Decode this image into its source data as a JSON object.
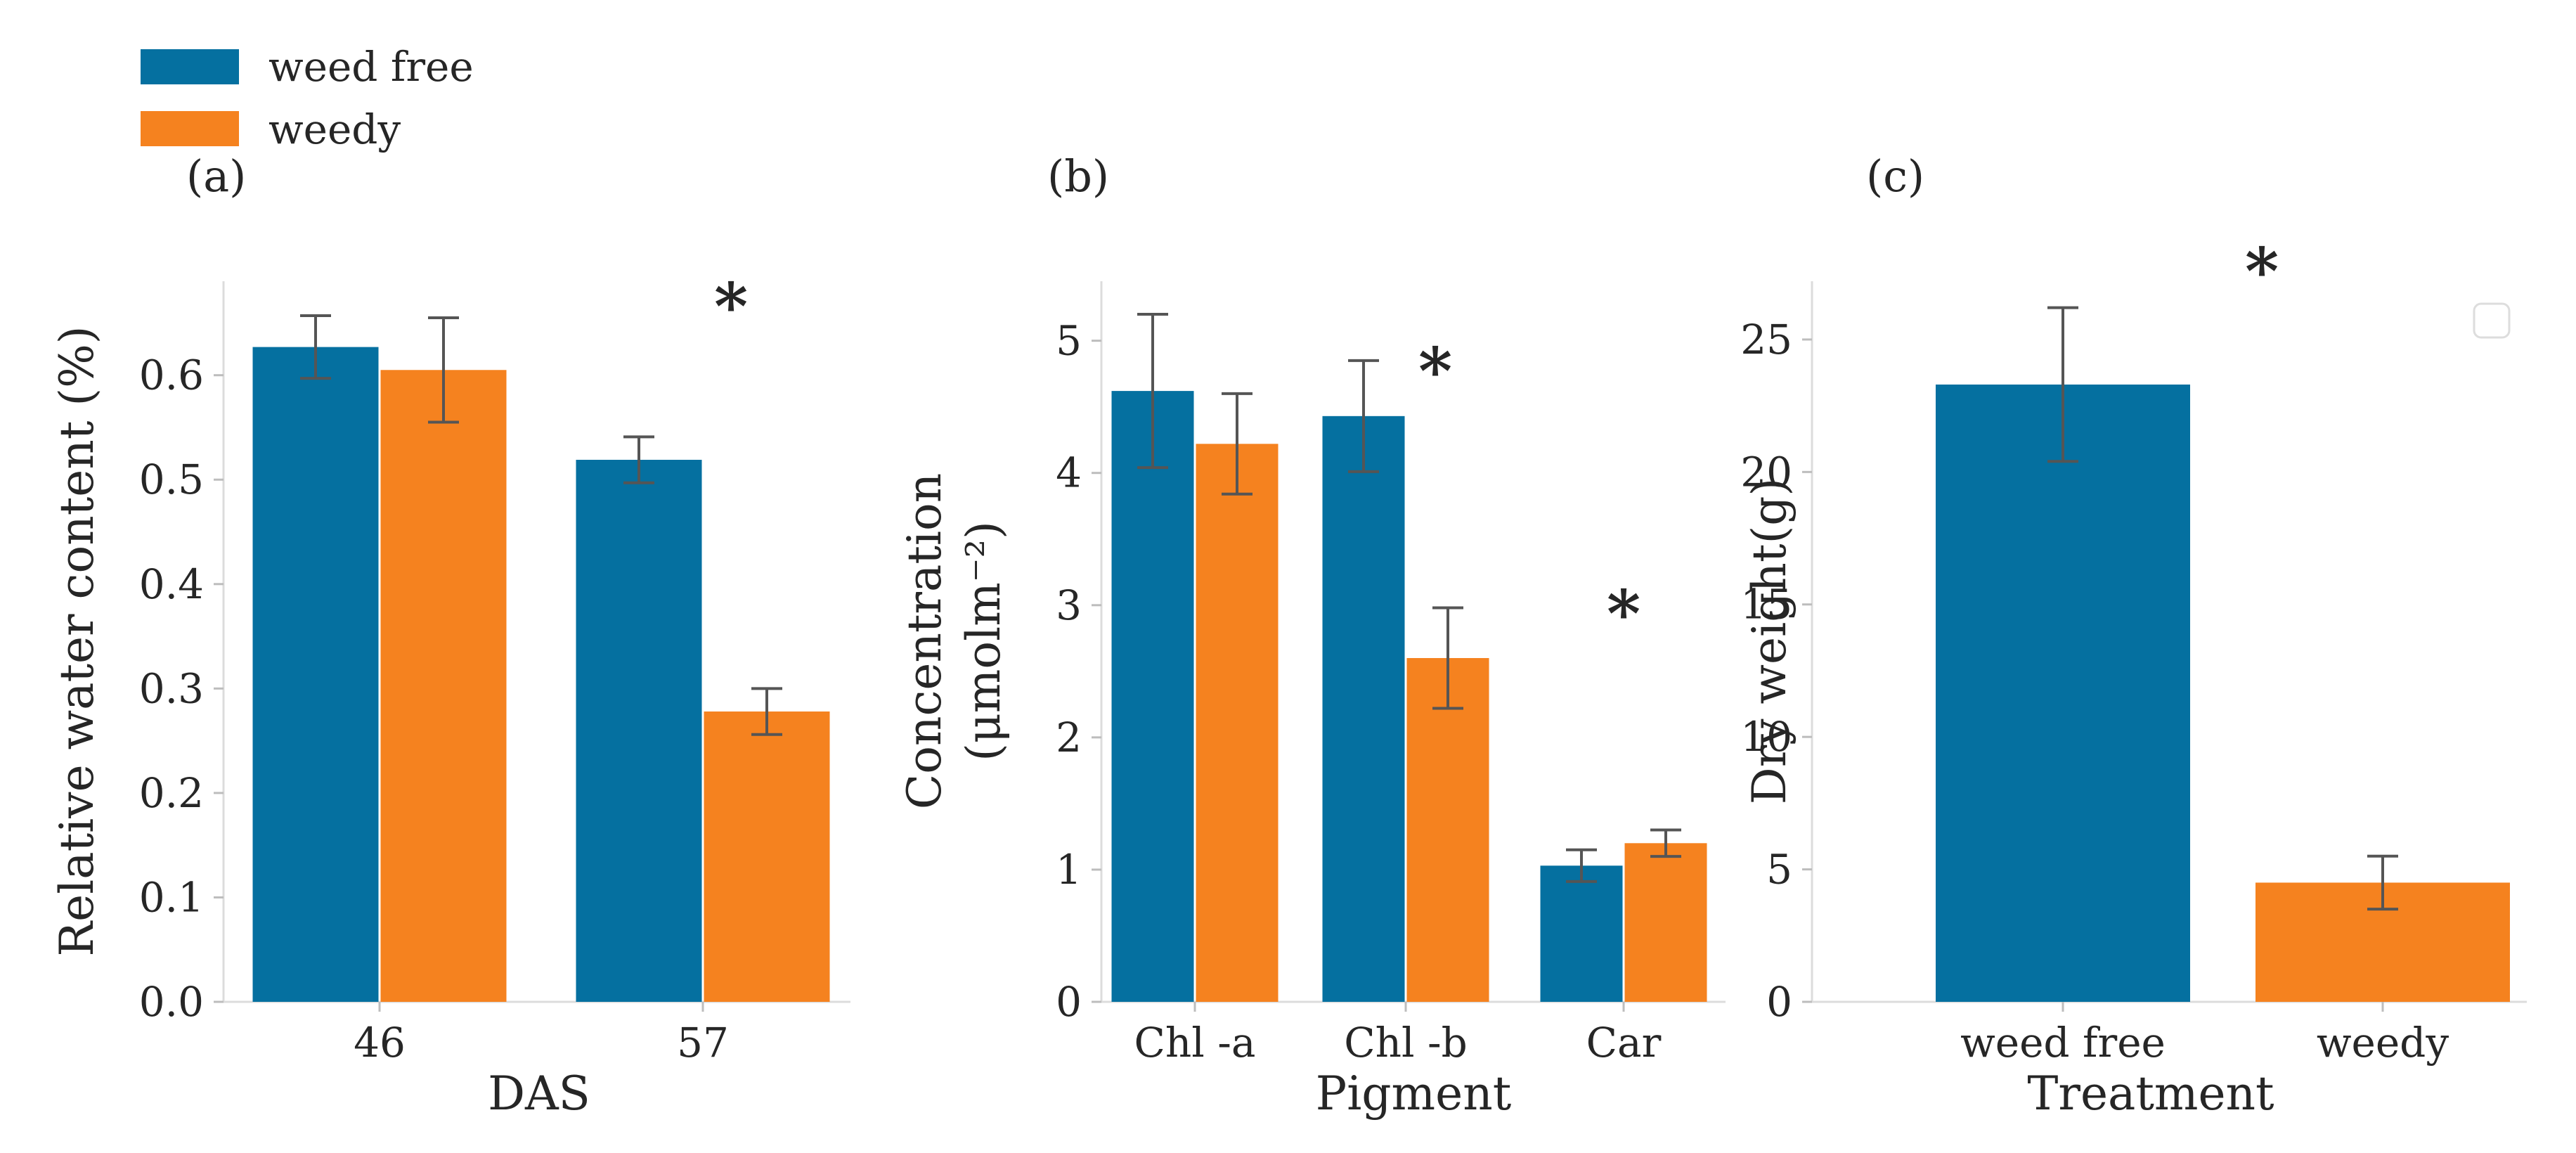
{
  "legend": {
    "items": [
      {
        "label": "weed free",
        "color": "#0570a0"
      },
      {
        "label": "weedy",
        "color": "#f5821f"
      }
    ]
  },
  "chart_data": [
    {
      "type": "bar",
      "panel": "(a)",
      "categories": [
        "46",
        "57"
      ],
      "xlabel": "DAS",
      "ylabel": "Relative water content (%)",
      "ylim": [
        0,
        0.69
      ],
      "yticks": [
        "0.0",
        "0.1",
        "0.2",
        "0.3",
        "0.4",
        "0.5",
        "0.6"
      ],
      "series": [
        {
          "name": "weed free",
          "values": [
            0.627,
            0.519
          ],
          "errors": [
            0.03,
            0.022
          ]
        },
        {
          "name": "weedy",
          "values": [
            0.605,
            0.278
          ],
          "errors": [
            0.05,
            0.022
          ]
        }
      ],
      "annotations": [
        {
          "text": "*",
          "category": "57"
        }
      ],
      "grid": false
    },
    {
      "type": "bar",
      "panel": "(b)",
      "categories": [
        "Chl -a",
        "Chl -b",
        "Car"
      ],
      "xlabel": "Pigment",
      "ylabel": "Concentration",
      "ylabel2": "(μmolm⁻²)",
      "ylim": [
        0,
        5.45
      ],
      "yticks": [
        "0",
        "1",
        "2",
        "3",
        "4",
        "5"
      ],
      "series": [
        {
          "name": "weed free",
          "values": [
            4.62,
            4.43,
            1.03
          ],
          "errors": [
            0.58,
            0.42,
            0.12
          ]
        },
        {
          "name": "weedy",
          "values": [
            4.22,
            2.6,
            1.2
          ],
          "errors": [
            0.38,
            0.38,
            0.1
          ]
        }
      ],
      "annotations": [
        {
          "text": "*",
          "category": "Chl -b"
        },
        {
          "text": "*",
          "category": "Car"
        }
      ],
      "grid": false
    },
    {
      "type": "bar",
      "panel": "(c)",
      "categories": [
        "weed free",
        "weedy"
      ],
      "xlabel": "Treatment",
      "ylabel": "Dry weight(g)",
      "ylim": [
        0,
        27.2
      ],
      "yticks": [
        "0",
        "5",
        "10",
        "15",
        "20",
        "25"
      ],
      "series": [
        {
          "name": "",
          "values": [
            23.3,
            4.5
          ],
          "errors": [
            2.9,
            1.0
          ],
          "colors": [
            "#0570a0",
            "#f5821f"
          ]
        }
      ],
      "annotations": [
        {
          "text": "*",
          "category": "weed free"
        }
      ],
      "grid": false
    }
  ]
}
